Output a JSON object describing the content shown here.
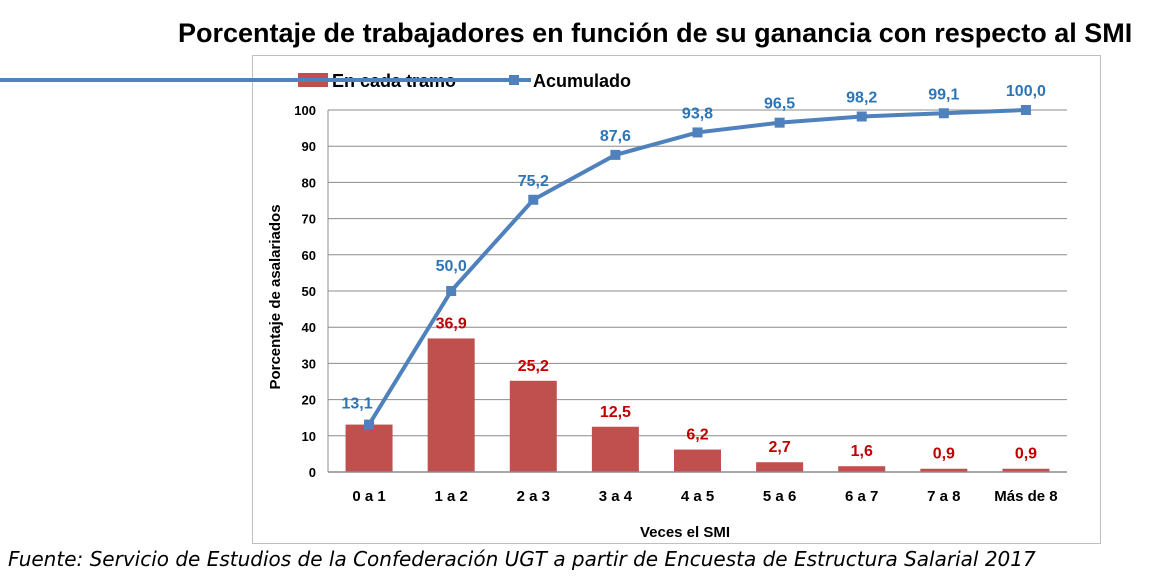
{
  "chart_data": {
    "type": "bar",
    "title": "Porcentaje de trabajadores en función de su ganancia con respecto al SMI",
    "xlabel": "Veces el SMI",
    "ylabel": "Porcentaje de asalariados",
    "ylim": [
      0,
      100
    ],
    "yticks": [
      "0",
      "10",
      "20",
      "30",
      "40",
      "50",
      "60",
      "70",
      "80",
      "90",
      "100"
    ],
    "grid": true,
    "legend_position": "top-left",
    "categories": [
      "0 a 1",
      "1 a 2",
      "2 a 3",
      "3 a 4",
      "4 a 5",
      "5 a 6",
      "6 a 7",
      "7 a 8",
      "Más de 8"
    ],
    "series": [
      {
        "name": "En cada tramo",
        "type": "bar",
        "color": "#c0504d",
        "label_color": "#c00000",
        "values": [
          13.1,
          36.9,
          25.2,
          12.5,
          6.2,
          2.7,
          1.6,
          0.9,
          0.9
        ],
        "labels": [
          "",
          "36,9",
          "25,2",
          "12,5",
          "6,2",
          "2,7",
          "1,6",
          "0,9",
          "0,9"
        ]
      },
      {
        "name": "Acumulado",
        "type": "line",
        "color": "#4f81bd",
        "label_color": "#2e75b6",
        "values": [
          13.1,
          50.0,
          75.2,
          87.6,
          93.8,
          96.5,
          98.2,
          99.1,
          100.0
        ],
        "labels": [
          "13,1",
          "50,0",
          "75,2",
          "87,6",
          "93,8",
          "96,5",
          "98,2",
          "99,1",
          "100,0"
        ]
      }
    ]
  },
  "source": "Fuente: Servicio de Estudios de la Confederación UGT a partir de Encuesta de Estructura Salarial 2017"
}
